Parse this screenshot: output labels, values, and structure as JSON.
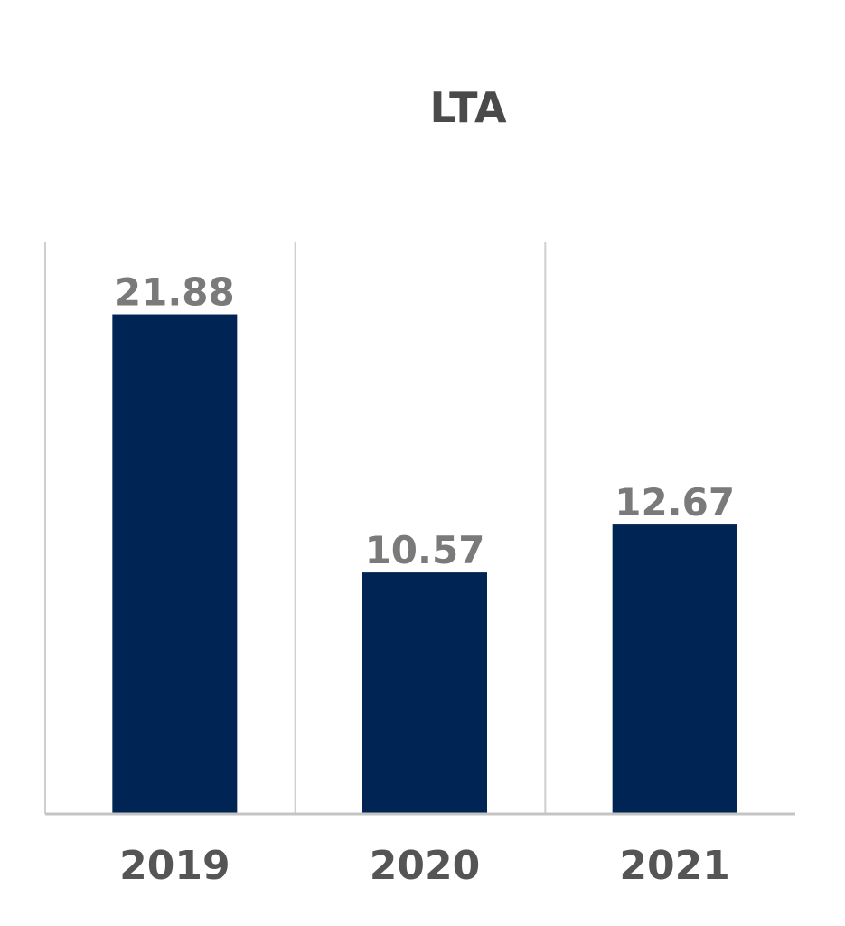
{
  "chart_data": {
    "type": "bar",
    "title": "LTA",
    "categories": [
      "2019",
      "2020",
      "2021"
    ],
    "series": [
      {
        "values": [
          21.88,
          10.57,
          12.67
        ],
        "labels": [
          "21.88",
          "10.57",
          "12.67"
        ],
        "color": "#002454"
      }
    ],
    "xlabel": "",
    "ylabel": "",
    "ylim": [
      0,
      25
    ],
    "grid": "vertical category separators",
    "legend": "none",
    "colors": {
      "bar": "#002454",
      "separator": "#cfcfcf",
      "axis": "#c4c4c4",
      "title": "#4a4a4a",
      "data_label": "#7a7a7a",
      "tick_label": "#555555"
    }
  }
}
